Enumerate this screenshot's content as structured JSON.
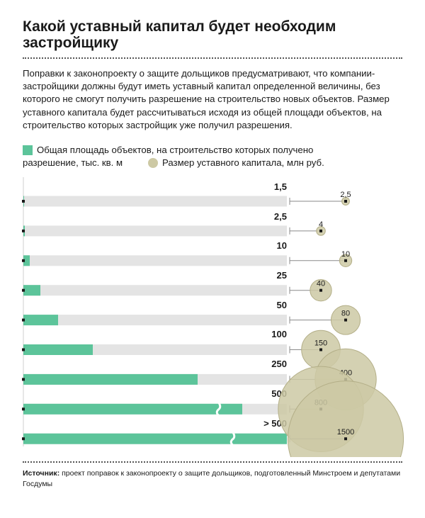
{
  "title": "Какой уставный капитал будет необходим застройщику",
  "lead": "Поправки к законопроекту о защите дольщиков предусматривают, что компании-застройщики должны будут иметь уставный капитал определенной величины, без которого не смогут получить разрешение на строительство новых объектов. Размер уставного капитала будет рассчитываться исходя из общей площади объектов, на строительство которых застройщик уже получил разрешения.",
  "legend": {
    "area_line1": "Общая площадь объектов, на строительство которых получено",
    "area_line2": "разрешение, тыс. кв. м",
    "capital": "Размер уставного капитала, млн руб.",
    "area_color": "#5cc49a",
    "capital_color": "#cdc9a4"
  },
  "chart_data": {
    "type": "bar",
    "categories": [
      "1,5",
      "2,5",
      "10",
      "25",
      "50",
      "100",
      "250",
      "500",
      "> 500"
    ],
    "series": [
      {
        "name": "Общая площадь объектов, на строительство которых получено разрешение, тыс. кв. м",
        "values": [
          1.5,
          2.5,
          10,
          25,
          50,
          100,
          250,
          500,
          null
        ]
      },
      {
        "name": "Размер уставного капитала, млн руб.",
        "values": [
          2.5,
          4,
          10,
          40,
          80,
          150,
          400,
          800,
          1500
        ],
        "labels": [
          "2,5",
          "4",
          "10",
          "40",
          "80",
          "150",
          "400",
          "800",
          "1500"
        ]
      }
    ],
    "broken_axis_rows": [
      "500",
      "> 500"
    ],
    "colors": {
      "bar": "#5cc49a",
      "track": "#e4e4e4",
      "bubble": "#cdc9a4",
      "bubble_stroke": "#b3ae87"
    }
  },
  "source": {
    "label": "Источник:",
    "text": " проект поправок к законопроекту о защите дольщиков, подготовленный Минстроем и депутатами Госдумы"
  }
}
